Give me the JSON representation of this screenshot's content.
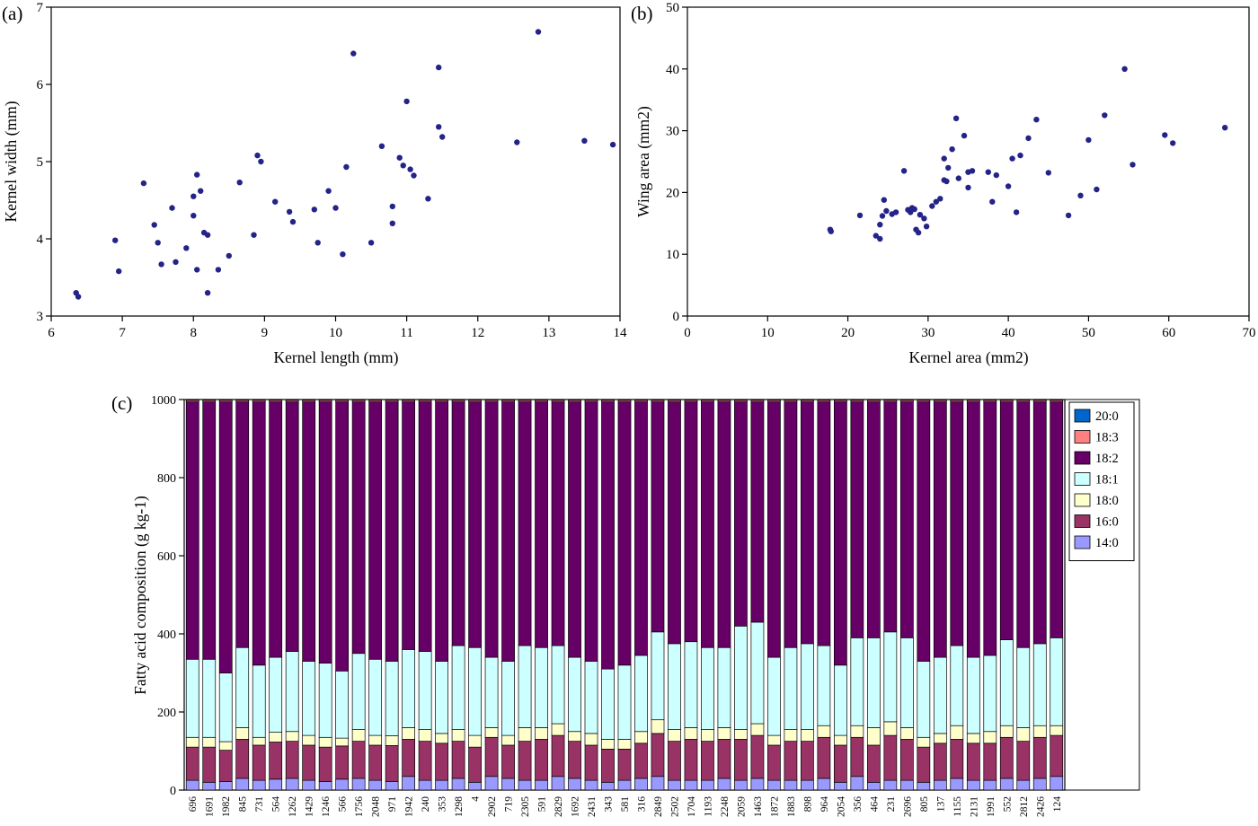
{
  "figure": {
    "panels": {
      "a": {
        "label": "(a)"
      },
      "b": {
        "label": "(b)"
      },
      "c": {
        "label": "(c)"
      }
    }
  },
  "chart_data": [
    {
      "panel": "a",
      "type": "scatter",
      "xlabel": "Kernel length (mm)",
      "ylabel": "Kernel width (mm)",
      "xlim": [
        6,
        14
      ],
      "ylim": [
        3,
        7
      ],
      "xticks": [
        6,
        7,
        8,
        9,
        10,
        11,
        12,
        13,
        14
      ],
      "yticks": [
        3,
        4,
        5,
        6,
        7
      ],
      "marker_color": "#232388",
      "points": [
        [
          6.35,
          3.3
        ],
        [
          6.38,
          3.25
        ],
        [
          6.9,
          3.98
        ],
        [
          6.95,
          3.58
        ],
        [
          7.3,
          4.72
        ],
        [
          7.45,
          4.18
        ],
        [
          7.5,
          3.95
        ],
        [
          7.55,
          3.67
        ],
        [
          7.7,
          4.4
        ],
        [
          7.75,
          3.7
        ],
        [
          7.9,
          3.88
        ],
        [
          8.0,
          4.3
        ],
        [
          8.0,
          4.55
        ],
        [
          8.05,
          3.6
        ],
        [
          8.05,
          4.83
        ],
        [
          8.1,
          4.62
        ],
        [
          8.15,
          4.08
        ],
        [
          8.2,
          4.05
        ],
        [
          8.2,
          3.3
        ],
        [
          8.35,
          3.6
        ],
        [
          8.5,
          3.78
        ],
        [
          8.65,
          4.73
        ],
        [
          8.85,
          4.05
        ],
        [
          8.9,
          5.08
        ],
        [
          8.95,
          5.0
        ],
        [
          9.15,
          4.48
        ],
        [
          9.35,
          4.35
        ],
        [
          9.4,
          4.22
        ],
        [
          9.7,
          4.38
        ],
        [
          9.75,
          3.95
        ],
        [
          9.9,
          4.62
        ],
        [
          10.0,
          4.4
        ],
        [
          10.1,
          3.8
        ],
        [
          10.15,
          4.93
        ],
        [
          10.25,
          6.4
        ],
        [
          10.5,
          3.95
        ],
        [
          10.65,
          5.2
        ],
        [
          10.8,
          4.42
        ],
        [
          10.8,
          4.2
        ],
        [
          10.9,
          5.05
        ],
        [
          10.95,
          4.95
        ],
        [
          11.0,
          5.78
        ],
        [
          11.05,
          4.9
        ],
        [
          11.1,
          4.82
        ],
        [
          11.3,
          4.52
        ],
        [
          11.45,
          6.22
        ],
        [
          11.45,
          5.45
        ],
        [
          11.5,
          5.32
        ],
        [
          12.55,
          5.25
        ],
        [
          12.85,
          6.68
        ],
        [
          13.5,
          5.27
        ],
        [
          13.9,
          5.22
        ]
      ]
    },
    {
      "panel": "b",
      "type": "scatter",
      "xlabel": "Kernel area (mm2)",
      "ylabel": "Wing area (mm2)",
      "xlim": [
        0,
        70
      ],
      "ylim": [
        0,
        50
      ],
      "xticks": [
        0,
        10,
        20,
        30,
        40,
        50,
        60,
        70
      ],
      "yticks": [
        0,
        10,
        20,
        30,
        40,
        50
      ],
      "marker_color": "#232388",
      "points": [
        [
          17.8,
          14.0
        ],
        [
          17.9,
          13.7
        ],
        [
          21.5,
          16.3
        ],
        [
          23.5,
          13.0
        ],
        [
          24.0,
          12.5
        ],
        [
          24.0,
          14.8
        ],
        [
          24.3,
          16.2
        ],
        [
          24.5,
          18.8
        ],
        [
          24.8,
          17.0
        ],
        [
          25.5,
          16.5
        ],
        [
          26.0,
          16.8
        ],
        [
          27.0,
          23.5
        ],
        [
          27.5,
          17.2
        ],
        [
          27.8,
          16.8
        ],
        [
          28.0,
          17.5
        ],
        [
          28.3,
          17.3
        ],
        [
          28.5,
          14.0
        ],
        [
          28.8,
          13.5
        ],
        [
          29.0,
          16.4
        ],
        [
          29.5,
          15.8
        ],
        [
          29.8,
          14.5
        ],
        [
          30.5,
          17.8
        ],
        [
          31.0,
          18.5
        ],
        [
          31.5,
          19.0
        ],
        [
          32.0,
          22.0
        ],
        [
          32.0,
          25.5
        ],
        [
          32.3,
          21.8
        ],
        [
          32.5,
          24.0
        ],
        [
          33.0,
          27.0
        ],
        [
          33.5,
          32.0
        ],
        [
          33.8,
          22.3
        ],
        [
          34.5,
          29.2
        ],
        [
          35.0,
          20.8
        ],
        [
          35.0,
          23.3
        ],
        [
          35.5,
          23.5
        ],
        [
          37.5,
          23.3
        ],
        [
          38.0,
          18.5
        ],
        [
          38.5,
          22.8
        ],
        [
          40.0,
          21.0
        ],
        [
          40.5,
          25.5
        ],
        [
          41.0,
          16.8
        ],
        [
          41.5,
          26.0
        ],
        [
          42.5,
          28.8
        ],
        [
          43.5,
          31.8
        ],
        [
          45.0,
          23.2
        ],
        [
          47.5,
          16.3
        ],
        [
          49.0,
          19.5
        ],
        [
          50.0,
          28.5
        ],
        [
          51.0,
          20.5
        ],
        [
          52.0,
          32.5
        ],
        [
          54.5,
          40.0
        ],
        [
          55.5,
          24.5
        ],
        [
          59.5,
          29.3
        ],
        [
          60.5,
          28.0
        ],
        [
          67.0,
          30.5
        ]
      ]
    },
    {
      "panel": "c",
      "type": "stacked_bar",
      "ylabel": "Fatty acid composition (g kg-1)",
      "ylim": [
        0,
        1000
      ],
      "yticks": [
        0,
        200,
        400,
        600,
        800,
        1000
      ],
      "categories": [
        "696",
        "1691",
        "1982",
        "845",
        "731",
        "564",
        "1262",
        "1429",
        "1246",
        "566",
        "1756",
        "2048",
        "971",
        "1942",
        "240",
        "353",
        "1298",
        "4",
        "2902",
        "719",
        "2305",
        "591",
        "2829",
        "1692",
        "2431",
        "343",
        "581",
        "316",
        "2849",
        "2502",
        "1704",
        "1193",
        "2248",
        "2059",
        "1463",
        "1872",
        "1883",
        "898",
        "964",
        "2054",
        "356",
        "464",
        "231",
        "2696",
        "805",
        "137",
        "1155",
        "2131",
        "1991",
        "552",
        "2812",
        "2426",
        "124"
      ],
      "series": [
        {
          "name": "14:0",
          "color": "#9999FF",
          "values": [
            25,
            20,
            22,
            30,
            25,
            28,
            30,
            25,
            22,
            28,
            30,
            25,
            22,
            35,
            25,
            25,
            30,
            20,
            35,
            30,
            25,
            25,
            35,
            30,
            25,
            20,
            25,
            30,
            35,
            25,
            25,
            25,
            30,
            25,
            30,
            25,
            25,
            25,
            30,
            20,
            35,
            20,
            25,
            25,
            20,
            25,
            30,
            25,
            25,
            30,
            25,
            30,
            35
          ]
        },
        {
          "name": "16:0",
          "color": "#993366",
          "values": [
            85,
            90,
            80,
            100,
            90,
            95,
            95,
            90,
            88,
            85,
            95,
            90,
            92,
            95,
            100,
            95,
            95,
            90,
            100,
            85,
            100,
            105,
            105,
            95,
            90,
            85,
            80,
            90,
            110,
            100,
            105,
            100,
            100,
            105,
            110,
            90,
            100,
            100,
            105,
            95,
            100,
            95,
            115,
            105,
            90,
            95,
            100,
            95,
            95,
            105,
            100,
            105,
            105
          ]
        },
        {
          "name": "18:0",
          "color": "#FFFFCC",
          "values": [
            25,
            25,
            22,
            30,
            20,
            25,
            25,
            25,
            25,
            20,
            30,
            25,
            25,
            30,
            30,
            25,
            30,
            30,
            25,
            25,
            35,
            30,
            30,
            25,
            30,
            25,
            25,
            30,
            35,
            30,
            30,
            30,
            30,
            25,
            30,
            25,
            30,
            30,
            30,
            25,
            30,
            45,
            35,
            30,
            25,
            25,
            35,
            25,
            30,
            30,
            35,
            30,
            25
          ]
        },
        {
          "name": "18:1",
          "color": "#CCFFFF",
          "values": [
            200,
            200,
            176,
            205,
            185,
            192,
            205,
            190,
            190,
            172,
            195,
            195,
            191,
            200,
            200,
            185,
            215,
            225,
            180,
            190,
            210,
            205,
            200,
            190,
            185,
            180,
            190,
            195,
            225,
            220,
            220,
            210,
            205,
            265,
            260,
            200,
            210,
            220,
            205,
            180,
            225,
            230,
            230,
            230,
            195,
            195,
            205,
            195,
            195,
            220,
            205,
            210,
            225
          ]
        },
        {
          "name": "18:2",
          "color": "#660066",
          "values": [
            659,
            659,
            694,
            629,
            674,
            654,
            639,
            664,
            669,
            689,
            644,
            659,
            664,
            634,
            639,
            664,
            624,
            629,
            654,
            664,
            624,
            629,
            624,
            654,
            664,
            684,
            674,
            649,
            589,
            619,
            614,
            629,
            629,
            574,
            564,
            654,
            629,
            619,
            624,
            674,
            604,
            604,
            589,
            604,
            664,
            654,
            624,
            654,
            649,
            609,
            629,
            619,
            604
          ]
        },
        {
          "name": "18:3",
          "color": "#FF8080",
          "constant_value": 4
        },
        {
          "name": "20:0",
          "color": "#0066CC",
          "constant_value": 2
        }
      ],
      "legend": {
        "position": "right",
        "labels_top_to_bottom": [
          "20:0",
          "18:3",
          "18:2",
          "18:1",
          "18:0",
          "16:0",
          "14:0"
        ]
      }
    }
  ]
}
